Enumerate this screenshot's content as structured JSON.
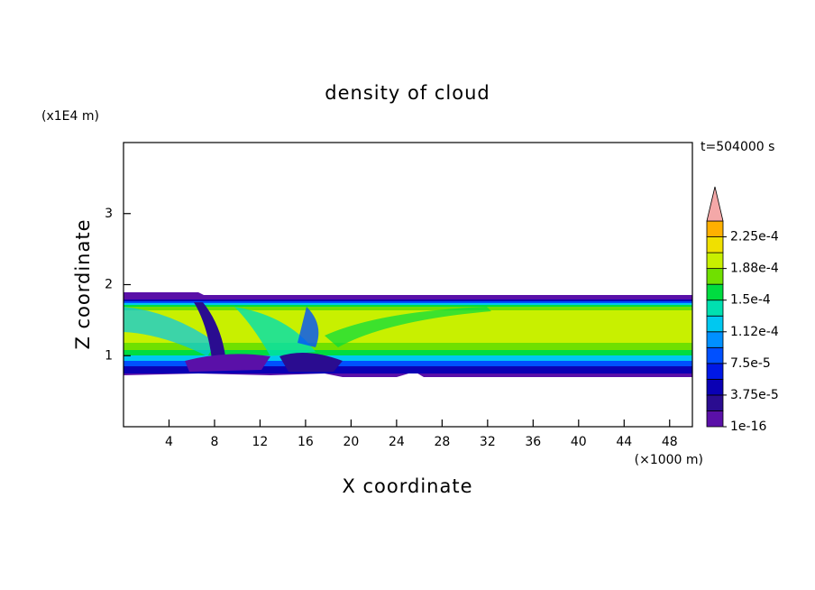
{
  "chart_data": {
    "type": "contour",
    "title": "density of cloud",
    "x_label": "X coordinate",
    "y_label": "Z coordinate",
    "x_unit": "(×1000 m)",
    "y_unit": "(x1E4 m)",
    "time_label": "t=504000 s",
    "xlim": [
      0,
      50
    ],
    "ylim": [
      0,
      4
    ],
    "xticks": [
      4,
      8,
      12,
      16,
      20,
      24,
      28,
      32,
      36,
      40,
      44,
      48
    ],
    "yticks": [
      1,
      2,
      3
    ],
    "colorbar": {
      "lim": [
        0,
        0.00024375
      ],
      "ticks": [
        {
          "value": 0,
          "label": "1e-16"
        },
        {
          "value": 3.75e-05,
          "label": "3.75e-5"
        },
        {
          "value": 7.5e-05,
          "label": "7.5e-5"
        },
        {
          "value": 0.0001125,
          "label": "1.12e-4"
        },
        {
          "value": 0.00015,
          "label": "1.5e-4"
        },
        {
          "value": 0.0001875,
          "label": "1.88e-4"
        },
        {
          "value": 0.000225,
          "label": "2.25e-4"
        }
      ],
      "colors": [
        "#5a10a8",
        "#2a0c90",
        "#0a00b4",
        "#0018e6",
        "#0050ff",
        "#0090ff",
        "#00c8f0",
        "#00e0b0",
        "#00dc40",
        "#70e000",
        "#c8f000",
        "#f0e000",
        "#ffb000"
      ],
      "extend_color": "#f4a8a8"
    }
  }
}
